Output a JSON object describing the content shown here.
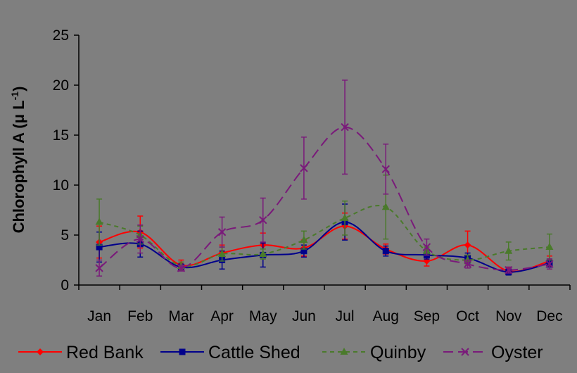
{
  "chart_data": {
    "type": "line",
    "title": "",
    "xlabel": "",
    "ylabel": "Chlorophyll A (μ L",
    "ylabel_superscript": "-1",
    "ylabel_close": ")",
    "categories": [
      "Jan",
      "Feb",
      "Mar",
      "Apr",
      "May",
      "Jun",
      "Jul",
      "Aug",
      "Sep",
      "Oct",
      "Nov",
      "Dec"
    ],
    "yticks": [
      "0",
      "5",
      "10",
      "15",
      "20",
      "25"
    ],
    "ylim": [
      0,
      25
    ],
    "grid": false,
    "legend_position": "bottom",
    "series": [
      {
        "name": "Red Bank",
        "color": "#ff0000",
        "marker": "diamond",
        "dash": "solid",
        "values": [
          4.3,
          5.3,
          2.0,
          3.2,
          4.0,
          3.7,
          5.9,
          3.6,
          2.4,
          4.0,
          1.4,
          2.4
        ],
        "errors": [
          1.6,
          1.6,
          0.5,
          0.8,
          1.2,
          0.8,
          1.3,
          0.5,
          0.5,
          1.4,
          0.3,
          0.5
        ]
      },
      {
        "name": "Cattle Shed",
        "color": "#00008b",
        "marker": "square",
        "dash": "solid",
        "values": [
          3.8,
          4.1,
          1.8,
          2.5,
          3.0,
          3.4,
          6.3,
          3.4,
          3.0,
          2.7,
          1.3,
          2.2
        ],
        "errors": [
          1.5,
          1.3,
          0.3,
          0.9,
          1.2,
          0.6,
          1.8,
          0.5,
          0.4,
          0.5,
          0.3,
          0.4
        ]
      },
      {
        "name": "Quinby",
        "color": "#4a7a2b",
        "marker": "triangle",
        "dash": "short",
        "values": [
          6.3,
          5.0,
          1.9,
          3.1,
          3.1,
          4.5,
          6.7,
          7.8,
          3.4,
          2.5,
          3.4,
          3.8
        ],
        "errors": [
          2.3,
          0.9,
          0.4,
          0.7,
          0.5,
          0.9,
          1.7,
          3.2,
          0.4,
          0.5,
          0.9,
          1.3
        ]
      },
      {
        "name": "Oyster",
        "color": "#7a1a7a",
        "marker": "x",
        "dash": "long",
        "values": [
          1.7,
          4.6,
          1.7,
          5.3,
          6.5,
          11.7,
          15.8,
          11.6,
          3.8,
          2.1,
          1.5,
          2.1
        ],
        "errors": [
          0.8,
          1.4,
          0.3,
          1.5,
          2.2,
          3.1,
          4.7,
          2.5,
          0.8,
          0.4,
          0.3,
          0.5
        ]
      }
    ]
  }
}
